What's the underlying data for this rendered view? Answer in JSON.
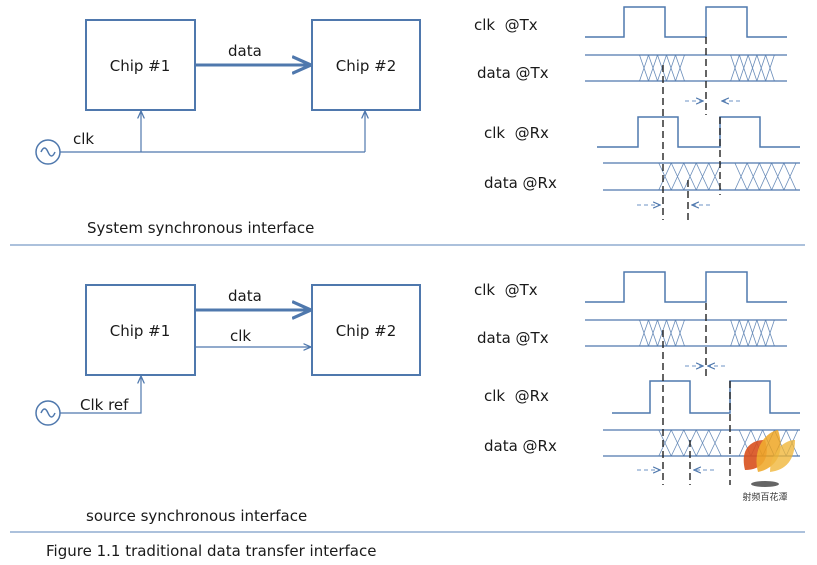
{
  "colors": {
    "line": "#4f78ad",
    "dash": "#222222",
    "text": "#1a1a1a"
  },
  "system_sync": {
    "chip1": "Chip #1",
    "chip2": "Chip #2",
    "data_label": "data",
    "clk_label": "clk",
    "caption": "System synchronous interface",
    "timing": {
      "clk_tx": "clk  @Tx",
      "data_tx": "data @Tx",
      "clk_rx": "clk  @Rx",
      "data_rx": "data @Rx"
    }
  },
  "source_sync": {
    "chip1": "Chip #1",
    "chip2": "Chip #2",
    "data_label": "data",
    "clk_label": "clk",
    "clkref_label": "Clk ref",
    "caption": "source synchronous interface",
    "timing": {
      "clk_tx": "clk  @Tx",
      "data_tx": "data @Tx",
      "clk_rx": "clk  @Rx",
      "data_rx": "data @Rx"
    }
  },
  "figure_caption": "Figure 1.1 traditional data transfer interface",
  "watermark": {
    "text": "射频百花潭",
    "icon": "flame-leaf-logo"
  }
}
